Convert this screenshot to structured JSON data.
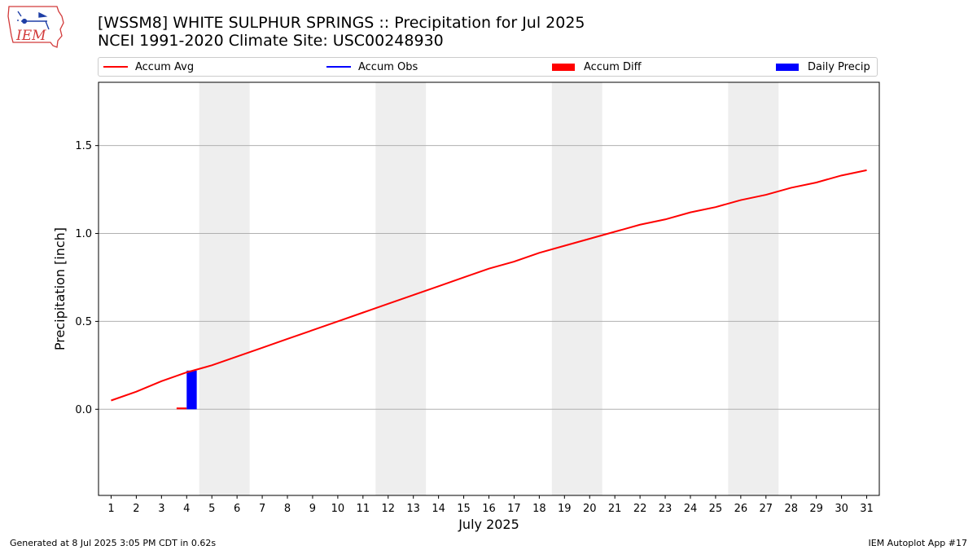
{
  "header": {
    "title_line1": "[WSSM8] WHITE SULPHUR SPRINGS :: Precipitation for Jul 2025",
    "title_line2": "NCEI 1991-2020 Climate Site: USC00248930",
    "logo_text": "IEM",
    "logo_icon": "iowa-map-weather-logo"
  },
  "colors": {
    "accum_avg": "#ff0000",
    "accum_obs": "#0000ff",
    "accum_diff": "#ff0000",
    "daily_precip": "#0000ff",
    "weekend_shade": "#eeeeee",
    "grid": "#b0b0b0"
  },
  "chart_data": {
    "type": "line",
    "xlabel": "July 2025",
    "ylabel": "Precipitation [inch]",
    "x": [
      1,
      2,
      3,
      4,
      5,
      6,
      7,
      8,
      9,
      10,
      11,
      12,
      13,
      14,
      15,
      16,
      17,
      18,
      19,
      20,
      21,
      22,
      23,
      24,
      25,
      26,
      27,
      28,
      29,
      30,
      31
    ],
    "xlim": [
      0.5,
      31.5
    ],
    "ylim": [
      -0.49,
      1.86
    ],
    "yticks": [
      0.0,
      0.5,
      1.0,
      1.5
    ],
    "ytick_labels": [
      "0.0",
      "0.5",
      "1.0",
      "1.5"
    ],
    "grid": "y",
    "legend_position": "top",
    "legend": [
      "Accum Avg",
      "Accum Obs",
      "Accum Diff",
      "Daily Precip"
    ],
    "series": [
      {
        "name": "Accum Avg",
        "kind": "line",
        "values": [
          0.05,
          0.1,
          0.16,
          0.21,
          0.25,
          0.3,
          0.35,
          0.4,
          0.45,
          0.5,
          0.55,
          0.6,
          0.65,
          0.7,
          0.75,
          0.8,
          0.84,
          0.89,
          0.93,
          0.97,
          1.01,
          1.05,
          1.08,
          1.12,
          1.15,
          1.19,
          1.22,
          1.26,
          1.29,
          1.33,
          1.36
        ]
      },
      {
        "name": "Accum Obs",
        "kind": "line",
        "x": [
          1,
          2,
          3,
          4
        ],
        "values": [
          0.0,
          0.0,
          0.0,
          0.22
        ]
      },
      {
        "name": "Accum Diff",
        "kind": "bar",
        "x": [
          4
        ],
        "values": [
          0.01
        ]
      },
      {
        "name": "Daily Precip",
        "kind": "bar",
        "x": [
          4
        ],
        "values": [
          0.22
        ]
      }
    ],
    "weekend_spans": [
      [
        4.5,
        6.5
      ],
      [
        11.5,
        13.5
      ],
      [
        18.5,
        20.5
      ],
      [
        25.5,
        27.5
      ]
    ]
  },
  "footer": {
    "generated": "Generated at 8 Jul 2025 3:05 PM CDT in 0.62s",
    "app": "IEM Autoplot App #17"
  }
}
